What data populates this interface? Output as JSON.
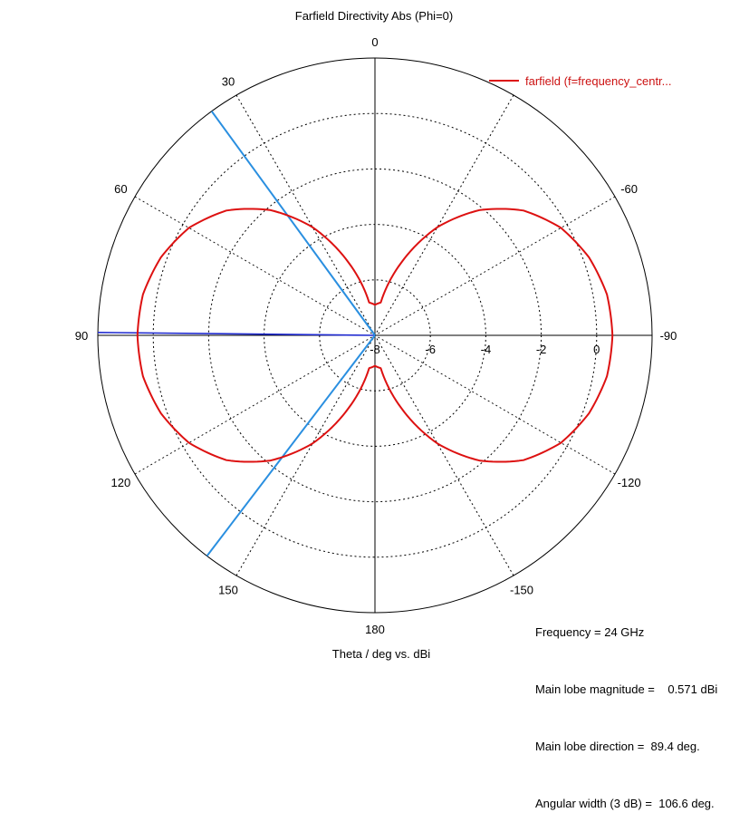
{
  "chart_data": {
    "type": "polar",
    "title": "Farfield Directivity Abs (Phi=0)",
    "xlabel": "Theta / deg vs. dBi",
    "angle_ticks": [
      "0",
      "30",
      "60",
      "90",
      "120",
      "150",
      "180",
      "-150",
      "-120",
      "-90",
      "-60"
    ],
    "radial_ticks": [
      "-8",
      "-6",
      "-4",
      "-2",
      "0"
    ],
    "radial_range": [
      -8,
      2
    ],
    "grid": true,
    "legend_position": "top-right",
    "series": [
      {
        "name": "farfield (f=frequency_centr...",
        "color": "#dd1111",
        "theta_deg": [
          0,
          10,
          20,
          30,
          40,
          50,
          60,
          70,
          80,
          90,
          100,
          110,
          120,
          130,
          140,
          150,
          160,
          170,
          180,
          190,
          200,
          210,
          220,
          230,
          240,
          250,
          260,
          270,
          280,
          290,
          300,
          310,
          320,
          330,
          340,
          350
        ],
        "values_dbi": [
          -6.9,
          -6.8,
          -5.2,
          -3.5,
          -2.1,
          -1.0,
          -0.25,
          0.22,
          0.5,
          0.57,
          0.5,
          0.22,
          -0.25,
          -1.0,
          -2.1,
          -3.5,
          -5.2,
          -6.8,
          -6.9,
          -6.8,
          -5.2,
          -3.5,
          -2.1,
          -1.0,
          -0.25,
          0.22,
          0.5,
          0.57,
          0.5,
          0.22,
          -0.25,
          -1.0,
          -2.1,
          -3.5,
          -5.2,
          -6.8
        ]
      }
    ],
    "markers": [
      {
        "type": "main-lobe-direction",
        "theta_deg": 89.4,
        "color": "#1f2ad0"
      },
      {
        "type": "3db-beamwidth-edge",
        "theta_deg": 36.1,
        "color": "#2a8fe0"
      },
      {
        "type": "3db-beamwidth-edge",
        "theta_deg": 142.7,
        "color": "#2a8fe0"
      }
    ]
  },
  "info": {
    "frequency": "Frequency = 24 GHz",
    "magnitude": "Main lobe magnitude =    0.571 dBi",
    "direction": "Main lobe direction =  89.4 deg.",
    "width": "Angular width (3 dB) =  106.6 deg."
  }
}
